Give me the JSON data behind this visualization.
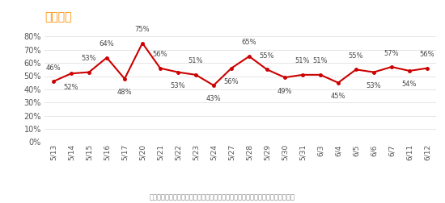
{
  "title": "看多指数",
  "title_color": "#FF8C00",
  "x_labels": [
    "5/13",
    "5/14",
    "5/15",
    "5/16",
    "5/17",
    "5/20",
    "5/21",
    "5/22",
    "5/23",
    "5/24",
    "5/27",
    "5/28",
    "5/29",
    "5/30",
    "5/31",
    "6/3",
    "6/4",
    "6/5",
    "6/6",
    "6/7",
    "6/11",
    "6/12"
  ],
  "y_values": [
    0.46,
    0.52,
    0.53,
    0.64,
    0.48,
    0.75,
    0.56,
    0.53,
    0.51,
    0.43,
    0.56,
    0.65,
    0.55,
    0.49,
    0.51,
    0.51,
    0.45,
    0.55,
    0.53,
    0.57,
    0.54,
    0.56
  ],
  "line_color": "#CC0000",
  "marker_color": "#CC0000",
  "ylim": [
    0.0,
    0.8
  ],
  "yticks": [
    0.0,
    0.1,
    0.2,
    0.3,
    0.4,
    0.5,
    0.6,
    0.7,
    0.8
  ],
  "footnote": "数据来源：金融界股灵通每日调查的看多占比，数值越大表示用户越看好当天走势",
  "background_color": "#FFFFFF",
  "grid_color": "#E0E0E0",
  "label_offsets": [
    1,
    -1,
    1,
    1,
    -1,
    1,
    1,
    -1,
    1,
    -1,
    -1,
    1,
    1,
    -1,
    1,
    1,
    -1,
    1,
    -1,
    1,
    -1,
    1
  ]
}
